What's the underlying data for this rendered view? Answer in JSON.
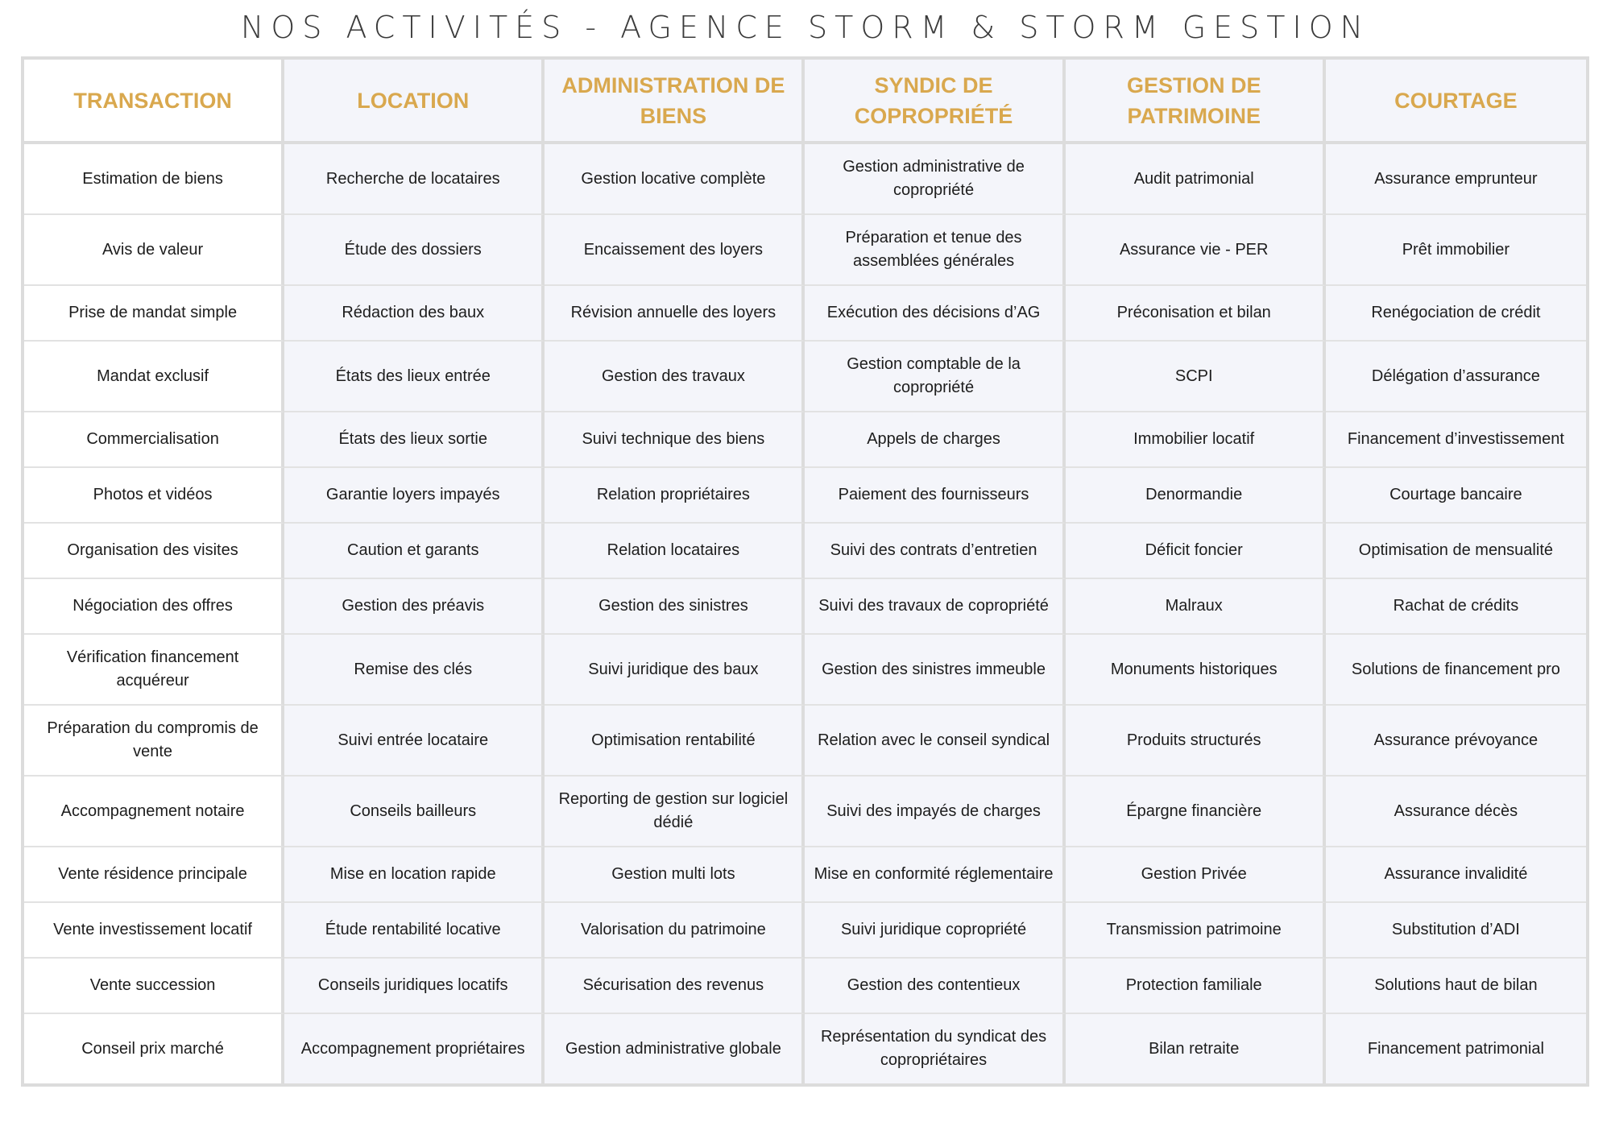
{
  "title": "NOS ACTIVITÉS - AGENCE STORM & STORM GESTION",
  "colors": {
    "header_text": "#d9a84e",
    "alt_column_bg": "#f4f5fa",
    "border": "#dcdcdc"
  },
  "columns": [
    "TRANSACTION",
    "LOCATION",
    "ADMINISTRATION DE BIENS",
    "SYNDIC DE COPROPRIÉTÉ",
    "GESTION DE PATRIMOINE",
    "COURTAGE"
  ],
  "rows": [
    [
      "Estimation de biens",
      "Recherche de locataires",
      "Gestion locative complète",
      "Gestion administrative de copropriété",
      "Audit patrimonial",
      "Assurance emprunteur"
    ],
    [
      "Avis de valeur",
      "Étude des dossiers",
      "Encaissement des loyers",
      "Préparation et tenue des assemblées générales",
      "Assurance vie - PER",
      "Prêt immobilier"
    ],
    [
      "Prise de mandat simple",
      "Rédaction des baux",
      "Révision annuelle des loyers",
      "Exécution des décisions d’AG",
      "Préconisation et bilan",
      "Renégociation de crédit"
    ],
    [
      "Mandat exclusif",
      "États des lieux entrée",
      "Gestion des travaux",
      "Gestion comptable de la copropriété",
      "SCPI",
      "Délégation d’assurance"
    ],
    [
      "Commercialisation",
      "États des lieux sortie",
      "Suivi technique des biens",
      "Appels de charges",
      "Immobilier locatif",
      "Financement d’investissement"
    ],
    [
      "Photos et vidéos",
      "Garantie loyers impayés",
      "Relation propriétaires",
      "Paiement des fournisseurs",
      "Denormandie",
      "Courtage bancaire"
    ],
    [
      "Organisation des visites",
      "Caution et garants",
      "Relation locataires",
      "Suivi des contrats d’entretien",
      "Déficit foncier",
      "Optimisation de mensualité"
    ],
    [
      "Négociation des offres",
      "Gestion des préavis",
      "Gestion des sinistres",
      "Suivi des travaux de copropriété",
      "Malraux",
      "Rachat de crédits"
    ],
    [
      "Vérification financement acquéreur",
      "Remise des clés",
      "Suivi juridique des baux",
      "Gestion des sinistres immeuble",
      "Monuments historiques",
      "Solutions de financement pro"
    ],
    [
      "Préparation du compromis de vente",
      "Suivi entrée locataire",
      "Optimisation rentabilité",
      "Relation avec le conseil syndical",
      "Produits structurés",
      "Assurance prévoyance"
    ],
    [
      "Accompagnement notaire",
      "Conseils bailleurs",
      "Reporting de gestion sur logiciel dédié",
      "Suivi des impayés de charges",
      "Épargne financière",
      "Assurance décès"
    ],
    [
      "Vente résidence principale",
      "Mise en location rapide",
      "Gestion multi lots",
      "Mise en conformité réglementaire",
      "Gestion Privée",
      "Assurance invalidité"
    ],
    [
      "Vente investissement locatif",
      "Étude rentabilité locative",
      "Valorisation du patrimoine",
      "Suivi juridique copropriété",
      "Transmission patrimoine",
      "Substitution d’ADI"
    ],
    [
      "Vente succession",
      "Conseils juridiques locatifs",
      "Sécurisation des revenus",
      "Gestion des contentieux",
      "Protection familiale",
      "Solutions haut de bilan"
    ],
    [
      "Conseil prix marché",
      "Accompagnement propriétaires",
      "Gestion administrative globale",
      "Représentation du syndicat des copropriétaires",
      "Bilan retraite",
      "Financement patrimonial"
    ]
  ]
}
